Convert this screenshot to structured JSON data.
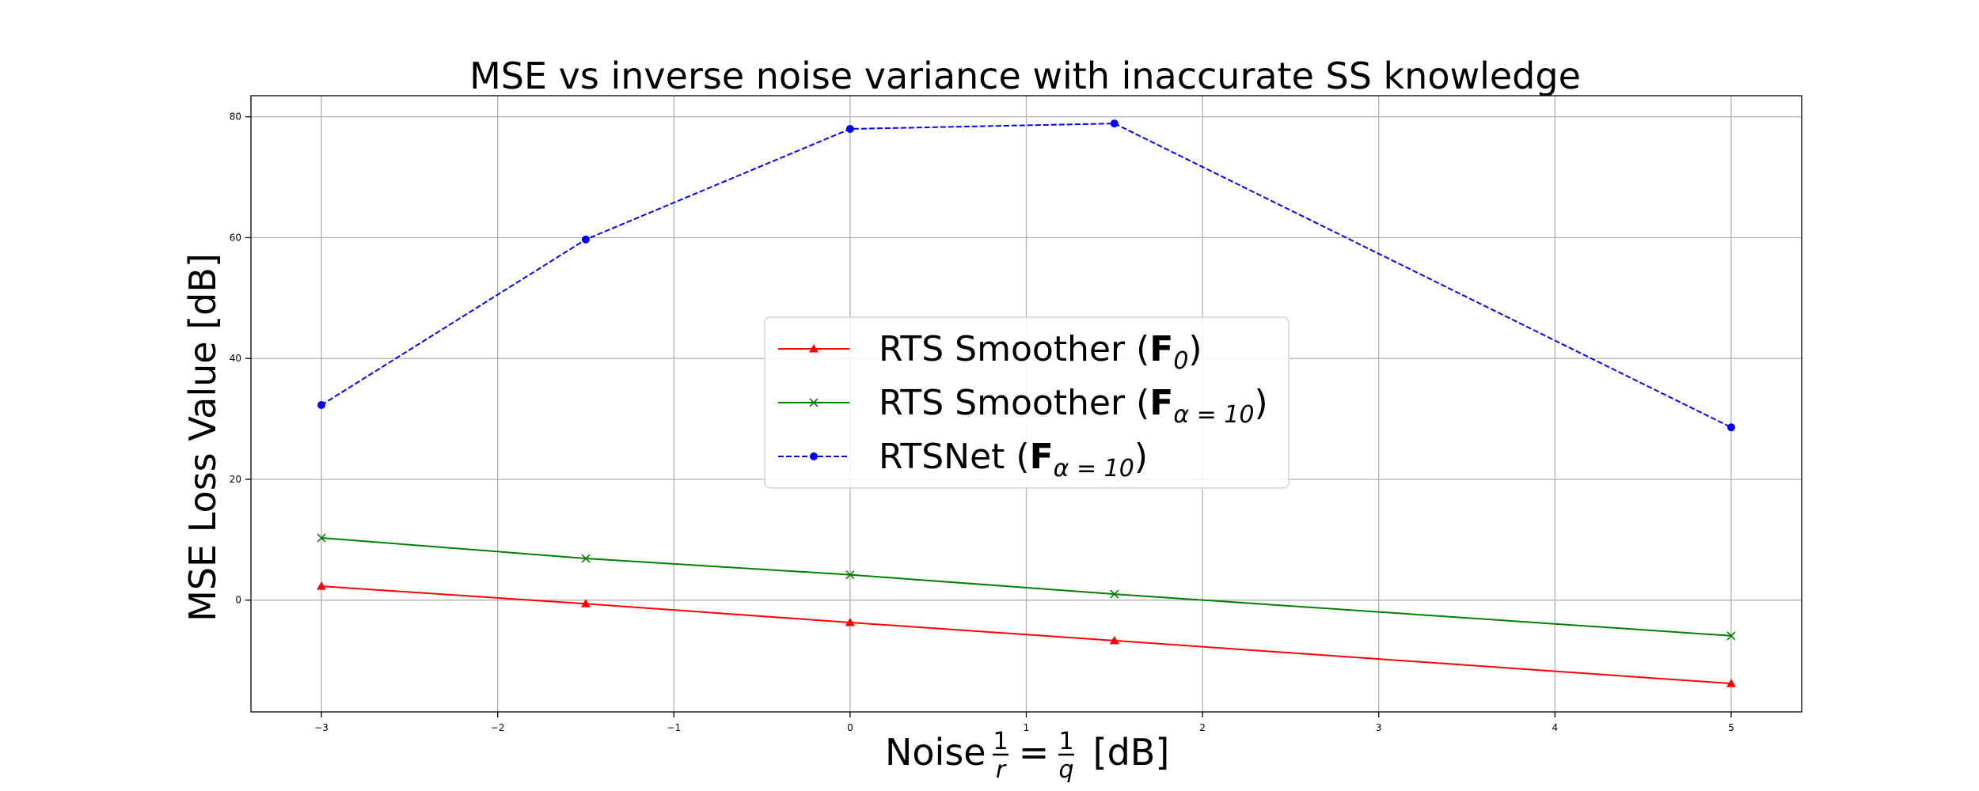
{
  "chart_data": {
    "type": "line",
    "title": "MSE vs inverse noise variance with inaccurate SS knowledge",
    "xlabel": {
      "prefix": "Noise ",
      "frac1_num": "1",
      "frac1_den": "r",
      "equals": "=",
      "frac2_num": "1",
      "frac2_den": "q",
      "suffix": " [dB]"
    },
    "ylabel": "MSE Loss Value [dB]",
    "xlim": [
      -3.4,
      5.4
    ],
    "ylim": [
      -18.5,
      83.5
    ],
    "xticks": [
      -3,
      -2,
      -1,
      0,
      1,
      2,
      3,
      4,
      5
    ],
    "xtick_labels": [
      "−3",
      "−2",
      "−1",
      "0",
      "1",
      "2",
      "3",
      "4",
      "5"
    ],
    "yticks": [
      0,
      20,
      40,
      60,
      80
    ],
    "ytick_labels": [
      "0",
      "20",
      "40",
      "60",
      "80"
    ],
    "grid": true,
    "legend_position": "center",
    "series": [
      {
        "name": "RTS Smoother (F0)",
        "legend_main": "RTS Smoother (",
        "legend_bold": "F",
        "legend_sub": "0",
        "legend_close": ")",
        "color": "#ff0000",
        "marker": "triangle",
        "linestyle": "solid",
        "x": [
          -3,
          -1.5,
          0,
          1.5,
          5
        ],
        "y": [
          2.3,
          -0.6,
          -3.7,
          -6.7,
          -13.8
        ]
      },
      {
        "name": "RTS Smoother (Fα=10)",
        "legend_main": "RTS Smoother (",
        "legend_bold": "F",
        "legend_sub": "α = 10",
        "legend_close": ")",
        "color": "#008000",
        "marker": "x",
        "linestyle": "solid",
        "x": [
          -3,
          -1.5,
          0,
          1.5,
          5
        ],
        "y": [
          10.3,
          6.9,
          4.2,
          1.0,
          -5.9
        ]
      },
      {
        "name": "RTSNet (Fα=10)",
        "legend_main": "RTSNet (",
        "legend_bold": "F",
        "legend_sub": "α = 10",
        "legend_close": ")",
        "color": "#0000ff",
        "marker": "circle",
        "linestyle": "dashed",
        "x": [
          -3,
          -1.5,
          0,
          1.5,
          5
        ],
        "y": [
          32.3,
          59.7,
          78.0,
          78.9,
          28.6
        ]
      }
    ]
  }
}
